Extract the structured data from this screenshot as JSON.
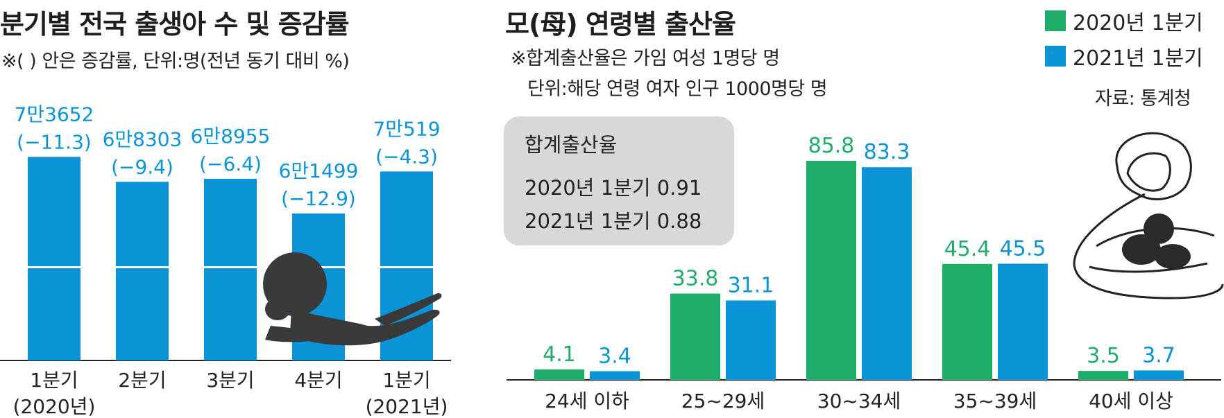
{
  "colors": {
    "blue": "#0a93d6",
    "green": "#1fad6a",
    "text": "#222222",
    "box": "#d7d8da",
    "baby": "#3a3a3a"
  },
  "left": {
    "title": "분기별 전국 출생아 수 및 증감률",
    "note": "※( ) 안은 증감률, 단위:명(전년 동기 대비 %)"
  },
  "right": {
    "title": "모(母) 연령별 출산율",
    "note1": "※합계출산율은 가임 여성 1명당 명",
    "note2": "단위:해당 연령 여자 인구 1000명당 명",
    "source": "자료: 통계청",
    "legend": [
      {
        "label": "2020년 1분기",
        "color": "#1fad6a"
      },
      {
        "label": "2021년 1분기",
        "color": "#0a93d6"
      }
    ],
    "box": {
      "title": "합계출산율",
      "line1": "2020년 1분기 0.91",
      "line2": "2021년 1분기 0.88"
    }
  },
  "chart_data": [
    {
      "type": "bar",
      "title": "분기별 전국 출생아 수 및 증감률",
      "categories": [
        "1분기 (2020년)",
        "2분기",
        "3분기",
        "4분기",
        "1분기 (2021년)"
      ],
      "category_lines": [
        [
          "1분기",
          "(2020년)"
        ],
        [
          "2분기"
        ],
        [
          "3분기"
        ],
        [
          "4분기"
        ],
        [
          "1분기",
          "(2021년)"
        ]
      ],
      "values": [
        73652,
        68303,
        68955,
        61499,
        70519
      ],
      "value_labels": [
        "7만3652",
        "6만8303",
        "6만8955",
        "6만1499",
        "7만519"
      ],
      "change_pct": [
        -11.3,
        -9.4,
        -6.4,
        -12.9,
        -4.3
      ],
      "change_labels": [
        "(−11.3)",
        "(−9.4)",
        "(−6.4)",
        "(−12.9)",
        "(−4.3)"
      ],
      "color": "#0a93d6",
      "axis_broken": true
    },
    {
      "type": "bar",
      "title": "모(母) 연령별 출산율",
      "categories": [
        "24세 이하",
        "25~29세",
        "30~34세",
        "35~39세",
        "40세 이상"
      ],
      "series": [
        {
          "name": "2020년 1분기",
          "values": [
            4.1,
            33.8,
            85.8,
            45.4,
            3.5
          ],
          "color": "#1fad6a"
        },
        {
          "name": "2021년 1분기",
          "values": [
            3.4,
            31.1,
            83.3,
            45.5,
            3.7
          ],
          "color": "#0a93d6"
        }
      ],
      "ylim": [
        0,
        85.8
      ]
    }
  ]
}
